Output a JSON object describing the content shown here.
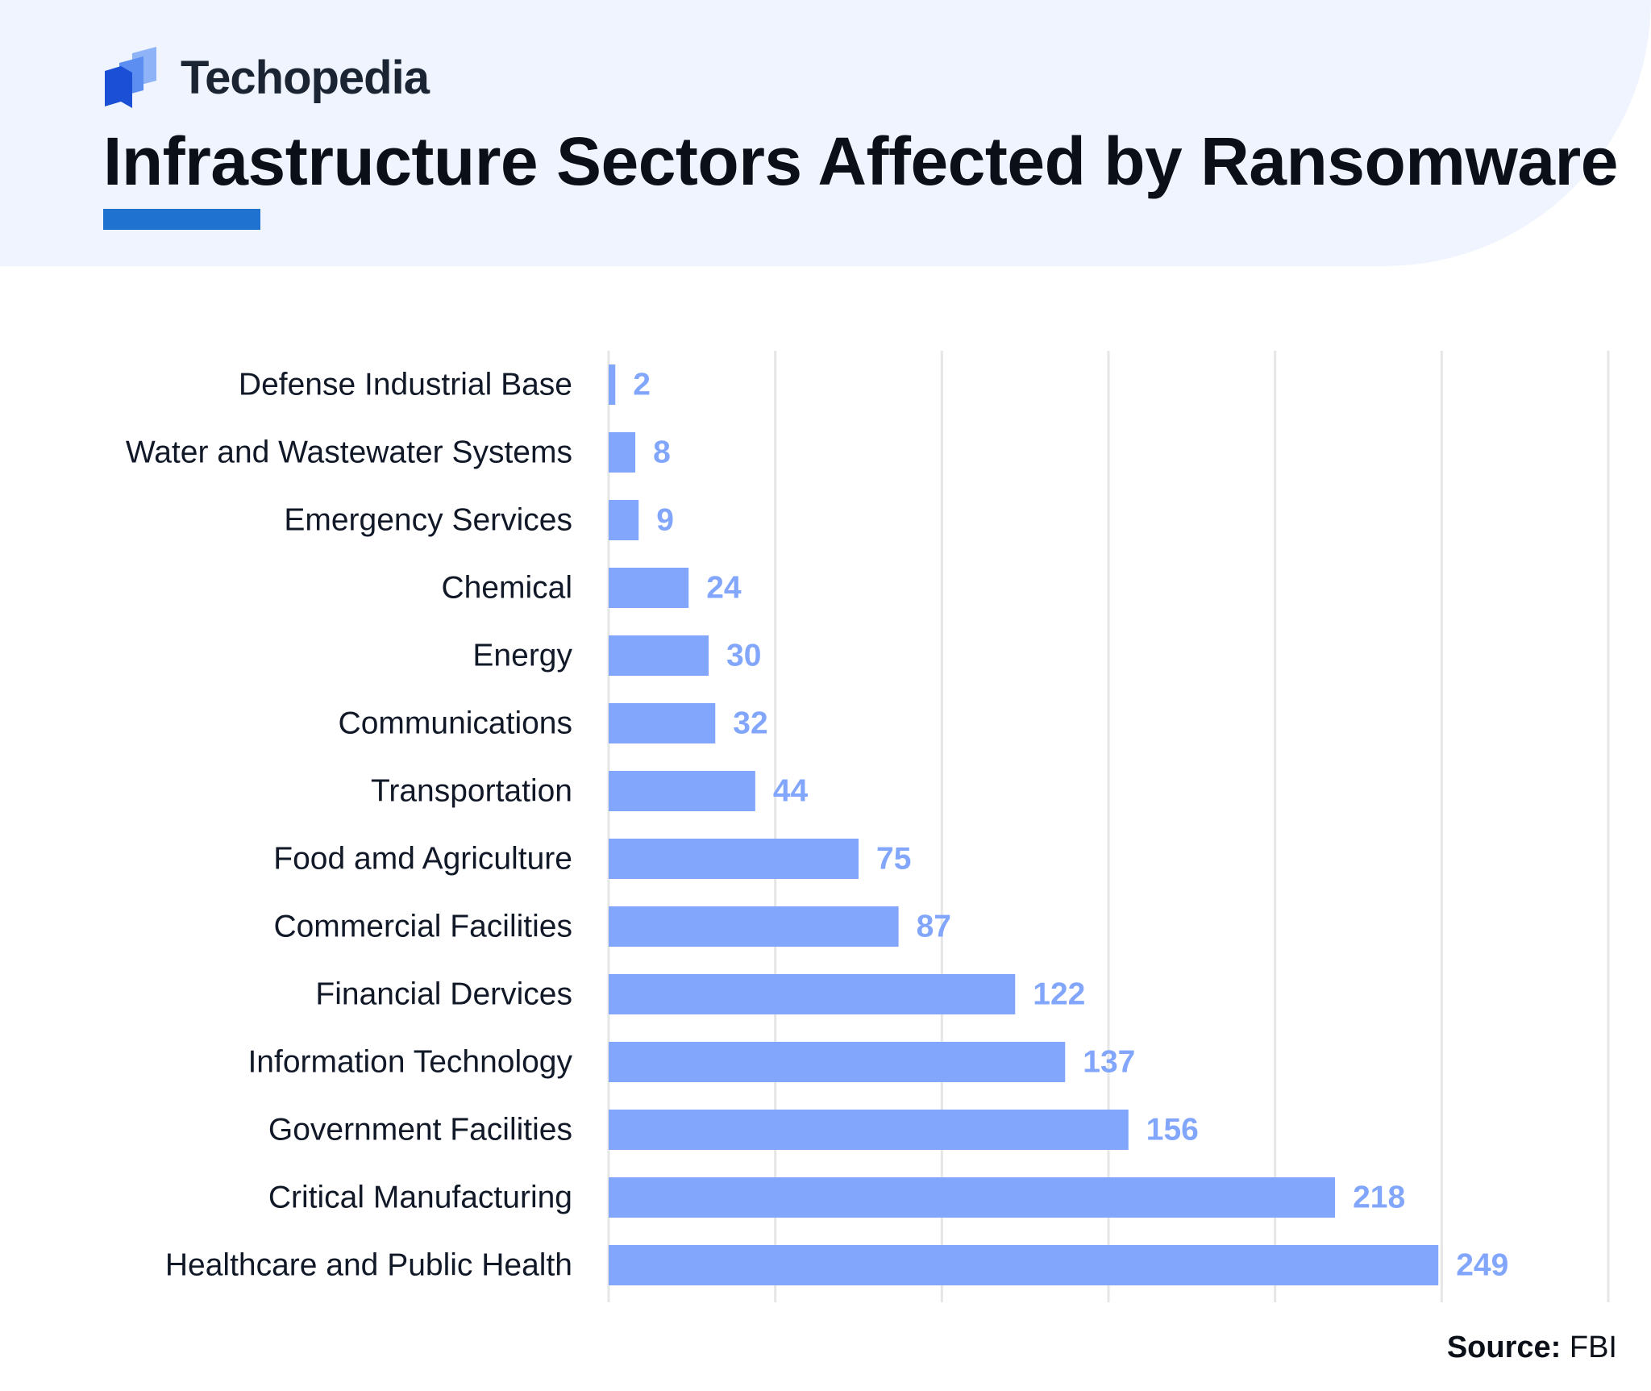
{
  "brand": {
    "name": "Techopedia",
    "logo_icon": "techopedia-logo-icon",
    "colors": {
      "logo_dark": "#1a4fd6",
      "logo_light": "#6f9ef5",
      "accent": "#1f72cf"
    }
  },
  "title": "Infrastructure Sectors Affected by Ransomware",
  "source": {
    "label": "Source:",
    "value": "FBI"
  },
  "chart_data": {
    "type": "bar",
    "orientation": "horizontal",
    "title": "Infrastructure Sectors Affected by Ransomware",
    "xlabel": "",
    "ylabel": "",
    "xlim": [
      0,
      300
    ],
    "grid": true,
    "x_tick_labels_shown": false,
    "bar_color": "#82a6fb",
    "label_color": "#82a6fb",
    "categories": [
      "Defense Industrial Base",
      "Water and Wastewater Systems",
      "Emergency Services",
      "Chemical",
      "Energy",
      "Communications",
      "Transportation",
      "Food amd Agriculture",
      "Commercial Facilities",
      "Financial Dervices",
      "Information Technology",
      "Government Facilities",
      "Critical Manufacturing",
      "Healthcare and Public Health"
    ],
    "values": [
      2,
      8,
      9,
      24,
      30,
      32,
      44,
      75,
      87,
      122,
      137,
      156,
      218,
      249
    ],
    "data_labels": [
      "2",
      "8",
      "9",
      "24",
      "30",
      "32",
      "44",
      "75",
      "87",
      "122",
      "137",
      "156",
      "218",
      "249"
    ]
  }
}
